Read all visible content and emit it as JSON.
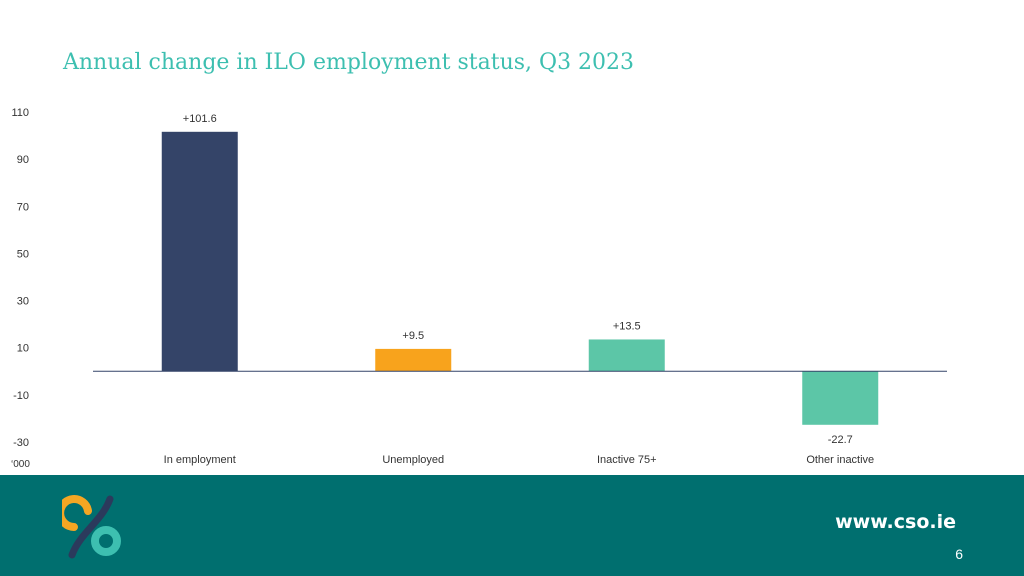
{
  "slide": {
    "title": "Annual change in ILO employment status, Q3 2023",
    "url": "www.cso.ie",
    "page_number": "6"
  },
  "colors": {
    "title": "#3dbfb0",
    "footer": "#006f6f",
    "logo_orange": "#f5a623",
    "logo_teal": "#3dbfb0",
    "logo_dark": "#2b3a5c"
  },
  "chart_data": {
    "type": "bar",
    "categories": [
      "In employment",
      "Unemployed",
      "Inactive 75+",
      "Other inactive"
    ],
    "values": [
      101.6,
      9.5,
      13.5,
      -22.7
    ],
    "data_labels": [
      "+101.6",
      "+9.5",
      "+13.5",
      "-22.7"
    ],
    "colors": [
      "#344468",
      "#f8a31c",
      "#5cc6a7",
      "#5cc6a7"
    ],
    "ylabel": "‘000",
    "yticks": [
      110,
      90,
      70,
      50,
      30,
      10,
      -10,
      -30
    ],
    "ylim": [
      -30,
      110
    ],
    "grid": false,
    "legend": "none"
  }
}
